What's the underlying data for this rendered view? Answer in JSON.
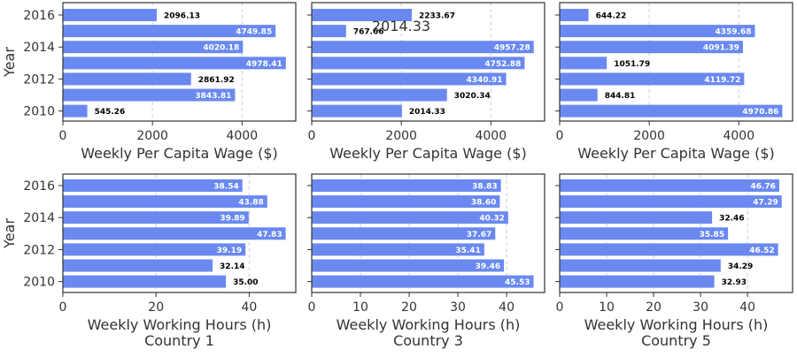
{
  "chart_data": [
    {
      "type": "bar",
      "orientation": "horizontal",
      "panel": "row1-col1",
      "categories": [
        "2010",
        "2011",
        "2012",
        "2013",
        "2014",
        "2015",
        "2016"
      ],
      "values": [
        545.26,
        3843.81,
        2861.92,
        4978.41,
        4020.18,
        4749.85,
        2096.13
      ],
      "value_labels": [
        "545.26",
        "3843.81",
        "2861.92",
        "4978.41",
        "4020.18",
        "4749.85",
        "2096.13"
      ],
      "xlabel": "Weekly Per Capita Wage ($)",
      "ylabel": "Year",
      "xlim": [
        0,
        5200
      ],
      "xticks": [
        "0",
        "2000",
        "4000"
      ],
      "yticks": [
        "2010",
        "2012",
        "2014",
        "2016"
      ],
      "subtitle": "",
      "grid": "vertical dashed"
    },
    {
      "type": "bar",
      "orientation": "horizontal",
      "panel": "row1-col2",
      "categories": [
        "2010",
        "2011",
        "2012",
        "2013",
        "2014",
        "2015",
        "2016"
      ],
      "values": [
        2014.33,
        3020.34,
        4340.91,
        4752.88,
        4957.28,
        767.66,
        2233.67
      ],
      "value_labels": [
        "2014.33",
        "3020.34",
        "4340.91",
        "4752.88",
        "4957.28",
        "767.66",
        "2233.67"
      ],
      "xlabel": "Weekly Per Capita Wage ($)",
      "ylabel": "",
      "xlim": [
        0,
        5200
      ],
      "xticks": [
        "0",
        "2000",
        "4000"
      ],
      "yticks": [
        "",
        "",
        "",
        ""
      ],
      "subtitle": "",
      "annotation": "2014.33",
      "grid": "vertical dashed"
    },
    {
      "type": "bar",
      "orientation": "horizontal",
      "panel": "row1-col3",
      "categories": [
        "2010",
        "2011",
        "2012",
        "2013",
        "2014",
        "2015",
        "2016"
      ],
      "values": [
        4970.86,
        844.81,
        4119.72,
        1051.79,
        4091.39,
        4359.68,
        644.22
      ],
      "value_labels": [
        "4970.86",
        "844.81",
        "4119.72",
        "1051.79",
        "4091.39",
        "4359.68",
        "644.22"
      ],
      "xlabel": "Weekly Per Capita Wage ($)",
      "ylabel": "",
      "xlim": [
        0,
        5200
      ],
      "xticks": [
        "0",
        "2000",
        "4000"
      ],
      "yticks": [
        "",
        "",
        "",
        ""
      ],
      "subtitle": "",
      "grid": "vertical dashed"
    },
    {
      "type": "bar",
      "orientation": "horizontal",
      "panel": "row2-col1",
      "categories": [
        "2010",
        "2011",
        "2012",
        "2013",
        "2014",
        "2015",
        "2016"
      ],
      "values": [
        35.0,
        32.14,
        39.19,
        47.83,
        39.89,
        43.88,
        38.54
      ],
      "value_labels": [
        "35.00",
        "32.14",
        "39.19",
        "47.83",
        "39.89",
        "43.88",
        "38.54"
      ],
      "xlabel": "Weekly Working Hours (h)",
      "ylabel": "Year",
      "xlim": [
        0,
        50
      ],
      "xticks": [
        "0",
        "20",
        "40"
      ],
      "yticks": [
        "2010",
        "2012",
        "2014",
        "2016"
      ],
      "subtitle": "Country 1",
      "grid": "vertical dashed"
    },
    {
      "type": "bar",
      "orientation": "horizontal",
      "panel": "row2-col2",
      "categories": [
        "2010",
        "2011",
        "2012",
        "2013",
        "2014",
        "2015",
        "2016"
      ],
      "values": [
        45.53,
        39.46,
        35.41,
        37.67,
        40.32,
        38.6,
        38.83
      ],
      "value_labels": [
        "45.53",
        "39.46",
        "35.41",
        "37.67",
        "40.32",
        "38.60",
        "38.83"
      ],
      "xlabel": "Weekly Working Hours (h)",
      "ylabel": "",
      "xlim": [
        0,
        47.8
      ],
      "xticks": [
        "0",
        "10",
        "20",
        "30",
        "40"
      ],
      "yticks": [
        "",
        "",
        "",
        ""
      ],
      "subtitle": "Country 3",
      "grid": "vertical dashed"
    },
    {
      "type": "bar",
      "orientation": "horizontal",
      "panel": "row2-col3",
      "categories": [
        "2010",
        "2011",
        "2012",
        "2013",
        "2014",
        "2015",
        "2016"
      ],
      "values": [
        32.93,
        34.29,
        46.52,
        35.85,
        32.46,
        47.29,
        46.76
      ],
      "value_labels": [
        "32.93",
        "34.29",
        "46.52",
        "35.85",
        "32.46",
        "47.29",
        "46.76"
      ],
      "xlabel": "Weekly Working Hours (h)",
      "ylabel": "",
      "xlim": [
        0,
        49.6
      ],
      "xticks": [
        "0",
        "10",
        "20",
        "30",
        "40"
      ],
      "yticks": [
        "",
        "",
        "",
        ""
      ],
      "subtitle": "Country 5",
      "grid": "vertical dashed"
    }
  ],
  "colors": {
    "bar": "#6a89f0",
    "axis": "#333333",
    "grid": "#d0d0d0",
    "label_inside": "#ffffff",
    "label_outside": "#000000"
  }
}
